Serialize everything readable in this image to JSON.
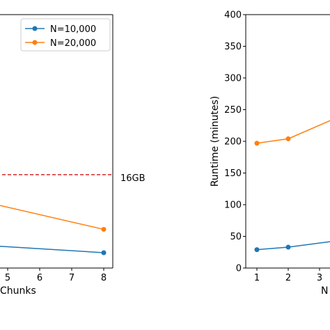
{
  "chart_data": [
    {
      "type": "line",
      "title": "",
      "xlabel": "Chunks",
      "ylabel": "",
      "x": [
        5,
        6,
        7,
        8
      ],
      "xlim": [
        4.7,
        8.3
      ],
      "ylim": [
        0,
        38
      ],
      "reference_line": {
        "value": 14,
        "label": "16GB",
        "color": "#d62728",
        "style": "dashed"
      },
      "legend": {
        "placement": "top-right",
        "entries": [
          "N=10,000",
          "N=20,000"
        ]
      },
      "series": [
        {
          "name": "N=10,000",
          "color": "#1f77b4",
          "x": [
            4.7,
            8
          ],
          "values": [
            3.3,
            2.3
          ],
          "markers": [
            false,
            true
          ]
        },
        {
          "name": "N=20,000",
          "color": "#ff7f0e",
          "x": [
            4.7,
            8
          ],
          "values": [
            9.5,
            5.8
          ],
          "markers": [
            false,
            true
          ]
        }
      ],
      "grid": false
    },
    {
      "type": "line",
      "title": "",
      "xlabel": "N",
      "ylabel": "Runtime (minutes)",
      "x": [
        1,
        2,
        3
      ],
      "xlim": [
        0.7,
        3.4
      ],
      "ylim": [
        0,
        400
      ],
      "yticks": [
        0,
        50,
        100,
        150,
        200,
        250,
        300,
        350,
        400
      ],
      "series": [
        {
          "name": "N=10,000",
          "color": "#1f77b4",
          "x": [
            1,
            2,
            3.4
          ],
          "values": [
            29,
            33,
            42
          ],
          "markers": [
            true,
            true,
            false
          ]
        },
        {
          "name": "N=20,000",
          "color": "#ff7f0e",
          "x": [
            1,
            2,
            3.4
          ],
          "values": [
            197,
            204,
            234
          ],
          "markers": [
            true,
            true,
            false
          ]
        }
      ],
      "grid": false
    }
  ]
}
